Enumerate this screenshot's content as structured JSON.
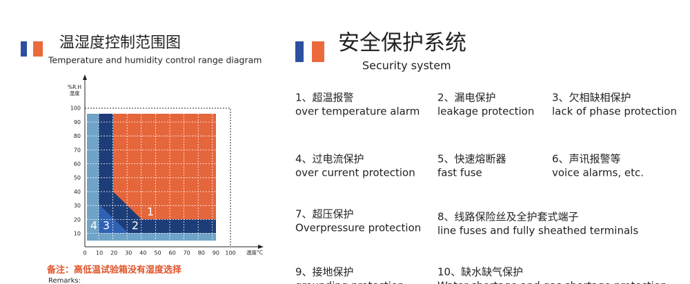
{
  "left": {
    "title": "温湿度控制范围图",
    "subtitle": "Temperature and humidity control range diagram",
    "diagram": {
      "y_label_top": "%R.H",
      "y_label_bottom": "湿度",
      "x_label": "温度°C",
      "yticks": [
        "10",
        "20",
        "30",
        "40",
        "50",
        "60",
        "70",
        "80",
        "90",
        "100"
      ],
      "xticks": [
        "0",
        "10",
        "20",
        "30",
        "40",
        "50",
        "60",
        "70",
        "80",
        "90",
        "100"
      ],
      "zones": [
        "1",
        "2",
        "3",
        "4"
      ]
    },
    "note": "备注：高低温试验箱没有湿度选择",
    "remarks": "Remarks:"
  },
  "right": {
    "title": "安全保护系统",
    "subtitle": "Security system",
    "items": [
      {
        "cn": "1、超温报警",
        "en": "over temperature alarm"
      },
      {
        "cn": "2、漏电保护",
        "en": "leakage protection"
      },
      {
        "cn": "3、欠相缺相保护",
        "en": "lack of phase protection"
      },
      {
        "cn": "4、过电流保护",
        "en": "over current protection"
      },
      {
        "cn": "5、快速熔断器",
        "en": "fast fuse"
      },
      {
        "cn": "6、声讯报警等",
        "en": "voice alarms, etc."
      },
      {
        "cn": "7、超压保护",
        "en": "Overpressure protection"
      },
      {
        "cn": "8、线路保险丝及全护套式端子",
        "en": "line fuses and fully sheathed terminals"
      },
      {
        "cn": "9、接地保护",
        "en": "grounding protection"
      },
      {
        "cn": "10、缺水缺气保护",
        "en": "Water shortage and gas shortage protection"
      }
    ]
  }
}
